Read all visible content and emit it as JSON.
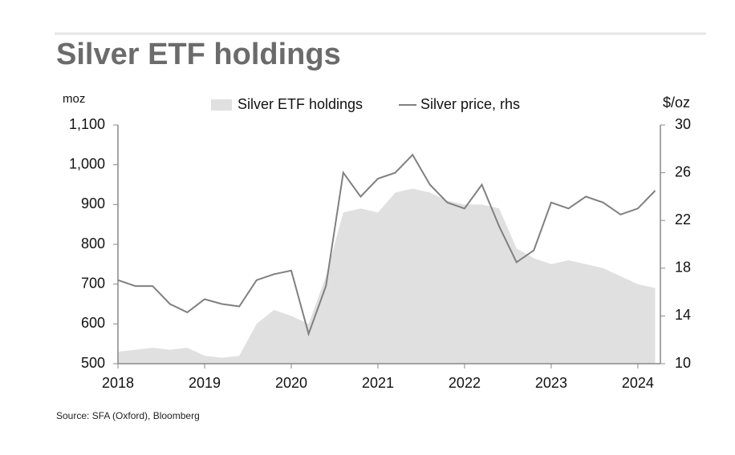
{
  "chart_data": {
    "type": "area-line",
    "title": "Silver ETF holdings",
    "y_label": "moz",
    "y2_label": "$/oz",
    "source": "Source: SFA (Oxford), Bloomberg",
    "x": [
      2018.0,
      2018.2,
      2018.4,
      2018.6,
      2018.8,
      2019.0,
      2019.2,
      2019.4,
      2019.6,
      2019.8,
      2020.0,
      2020.2,
      2020.4,
      2020.6,
      2020.8,
      2021.0,
      2021.2,
      2021.4,
      2021.6,
      2021.8,
      2022.0,
      2022.2,
      2022.4,
      2022.6,
      2022.8,
      2023.0,
      2023.2,
      2023.4,
      2023.6,
      2023.8,
      2024.0,
      2024.2
    ],
    "series": [
      {
        "name": "Silver ETF holdings",
        "color": "#e0e0e0",
        "kind": "area",
        "axis": "y",
        "values": [
          530,
          535,
          540,
          535,
          540,
          520,
          515,
          520,
          600,
          635,
          620,
          600,
          720,
          880,
          890,
          880,
          930,
          940,
          930,
          910,
          900,
          900,
          890,
          790,
          765,
          750,
          760,
          750,
          740,
          720,
          700,
          690
        ]
      },
      {
        "name": "Silver price, rhs",
        "color": "#808080",
        "kind": "line",
        "axis": "y2",
        "values": [
          17,
          16.5,
          16.5,
          15,
          14.3,
          15.4,
          15,
          14.8,
          17,
          17.5,
          17.8,
          12.5,
          16.5,
          26,
          24,
          25.5,
          26,
          27.5,
          25,
          23.5,
          23,
          25,
          21.5,
          18.5,
          19.5,
          23.5,
          23,
          24,
          23.5,
          22.5,
          23,
          24.5
        ]
      }
    ],
    "xlim": [
      2018,
      2024.26
    ],
    "xticks": [
      2018,
      2019,
      2020,
      2021,
      2022,
      2023,
      2024
    ],
    "ylim": [
      500,
      1100
    ],
    "yticks": [
      500,
      600,
      700,
      800,
      900,
      {
        "value": 1000,
        "label": "1,000"
      },
      {
        "value": 1100,
        "label": "1,100"
      }
    ],
    "y2lim": [
      10,
      30
    ],
    "y2ticks": [
      10,
      14,
      18,
      22,
      26,
      30
    ]
  }
}
